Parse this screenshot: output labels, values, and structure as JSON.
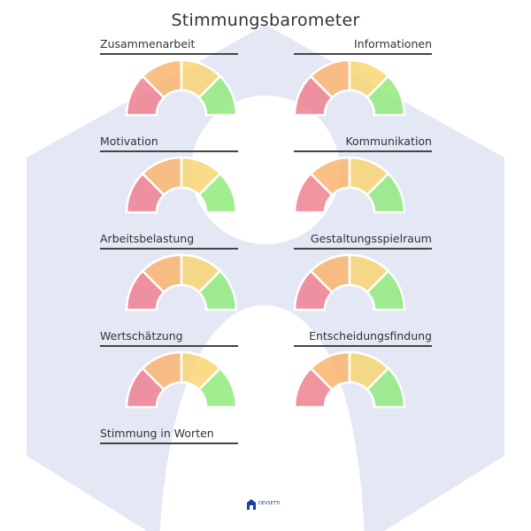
{
  "title": "Stimmungsbarometer",
  "gauges": [
    {
      "label": "Zusammenarbeit",
      "side": "left"
    },
    {
      "label": "Informationen",
      "side": "right"
    },
    {
      "label": "Motivation",
      "side": "left"
    },
    {
      "label": "Kommunikation",
      "side": "right"
    },
    {
      "label": "Arbeitsbelastung",
      "side": "left"
    },
    {
      "label": "Gestaltungsspielraum",
      "side": "right"
    },
    {
      "label": "Wertschätzung",
      "side": "left"
    },
    {
      "label": "Entscheidungsfindung",
      "side": "right"
    }
  ],
  "free_text_label": "Stimmung in Worten",
  "segment_colors": [
    "#f0808f",
    "#f9b46e",
    "#f8d573",
    "#93ea7e"
  ],
  "background_color": "#e4e8f5",
  "logo": {
    "text": "DEVSETTI",
    "icon": "house-logo-icon",
    "color": "#1d3fa8"
  }
}
